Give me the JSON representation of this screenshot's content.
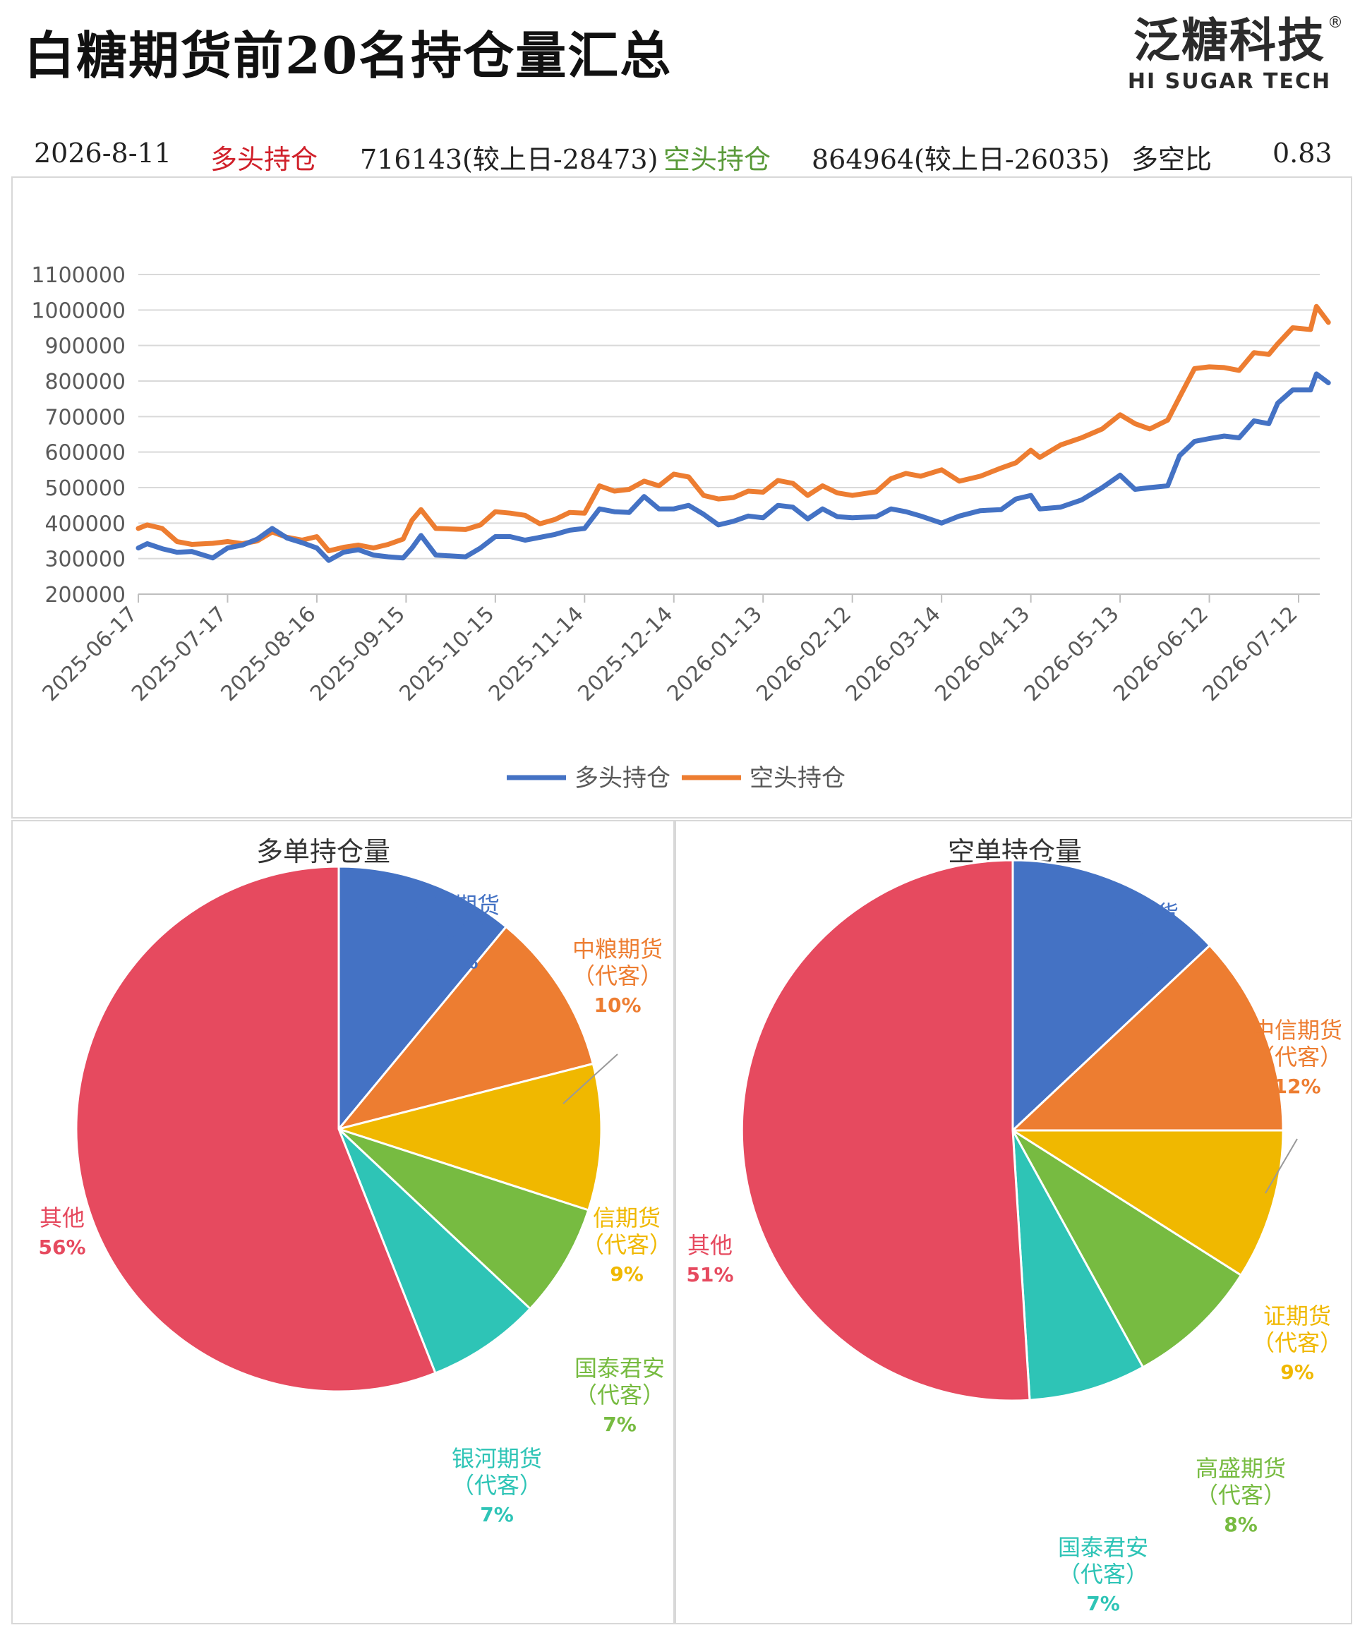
{
  "header": {
    "title": "白糖期货前20名持仓量汇总",
    "logo_cn": "泛糖科技",
    "logo_en": "HI SUGAR TECH",
    "logo_reg": "®"
  },
  "summary": {
    "date": "2026-8-11",
    "long_label": "多头持仓",
    "long_value": "716143(较上日-28473)",
    "short_label": "空头持仓",
    "short_value": "864964(较上日-26035)",
    "ratio_label": "多空比",
    "ratio_value": "0.83"
  },
  "colors": {
    "long": "#4472c4",
    "short": "#ed7d31",
    "pie": [
      "#4472c4",
      "#ed7d31",
      "#f0b800",
      "#77bb41",
      "#2ec4b6",
      "#e64a5f"
    ]
  },
  "chart_data": [
    {
      "type": "line",
      "title": "",
      "xlabel": "",
      "ylabel": "",
      "ylim": [
        200000,
        1100000
      ],
      "yticks": [
        "1100000",
        "1000000",
        "900000",
        "800000",
        "700000",
        "600000",
        "500000",
        "400000",
        "300000",
        "200000"
      ],
      "xticks": [
        "2025-06-17",
        "2025-07-17",
        "2025-08-16",
        "2025-09-15",
        "2025-10-15",
        "2025-11-14",
        "2025-12-14",
        "2026-01-13",
        "2026-02-12",
        "2026-03-14",
        "2026-04-13",
        "2026-05-13",
        "2026-06-12",
        "2026-07-12"
      ],
      "legend_position": "bottom",
      "series": [
        {
          "name": "多头持仓",
          "color": "#4472c4",
          "points": [
            [
              "2025-06-17",
              330000
            ],
            [
              "2025-06-20",
              342000
            ],
            [
              "2025-06-25",
              328000
            ],
            [
              "2025-06-30",
              318000
            ],
            [
              "2025-07-05",
              320000
            ],
            [
              "2025-07-12",
              302000
            ],
            [
              "2025-07-17",
              330000
            ],
            [
              "2025-07-22",
              338000
            ],
            [
              "2025-07-27",
              355000
            ],
            [
              "2025-08-01",
              385000
            ],
            [
              "2025-08-06",
              358000
            ],
            [
              "2025-08-11",
              345000
            ],
            [
              "2025-08-16",
              330000
            ],
            [
              "2025-08-20",
              295000
            ],
            [
              "2025-08-25",
              318000
            ],
            [
              "2025-08-30",
              325000
            ],
            [
              "2025-09-04",
              310000
            ],
            [
              "2025-09-09",
              305000
            ],
            [
              "2025-09-14",
              302000
            ],
            [
              "2025-09-17",
              330000
            ],
            [
              "2025-09-20",
              365000
            ],
            [
              "2025-09-25",
              310000
            ],
            [
              "2025-10-05",
              305000
            ],
            [
              "2025-10-10",
              330000
            ],
            [
              "2025-10-15",
              362000
            ],
            [
              "2025-10-20",
              362000
            ],
            [
              "2025-10-25",
              352000
            ],
            [
              "2025-10-30",
              360000
            ],
            [
              "2025-11-04",
              368000
            ],
            [
              "2025-11-09",
              380000
            ],
            [
              "2025-11-14",
              385000
            ],
            [
              "2025-11-19",
              440000
            ],
            [
              "2025-11-24",
              432000
            ],
            [
              "2025-11-29",
              430000
            ],
            [
              "2025-12-04",
              475000
            ],
            [
              "2025-12-09",
              440000
            ],
            [
              "2025-12-14",
              440000
            ],
            [
              "2025-12-19",
              450000
            ],
            [
              "2025-12-24",
              425000
            ],
            [
              "2025-12-29",
              395000
            ],
            [
              "2026-01-03",
              405000
            ],
            [
              "2026-01-08",
              420000
            ],
            [
              "2026-01-13",
              415000
            ],
            [
              "2026-01-18",
              450000
            ],
            [
              "2026-01-23",
              445000
            ],
            [
              "2026-01-28",
              412000
            ],
            [
              "2026-02-02",
              440000
            ],
            [
              "2026-02-07",
              418000
            ],
            [
              "2026-02-12",
              415000
            ],
            [
              "2026-02-20",
              418000
            ],
            [
              "2026-02-25",
              440000
            ],
            [
              "2026-03-02",
              432000
            ],
            [
              "2026-03-07",
              420000
            ],
            [
              "2026-03-14",
              400000
            ],
            [
              "2026-03-20",
              420000
            ],
            [
              "2026-03-27",
              435000
            ],
            [
              "2026-04-03",
              438000
            ],
            [
              "2026-04-08",
              468000
            ],
            [
              "2026-04-13",
              478000
            ],
            [
              "2026-04-16",
              440000
            ],
            [
              "2026-04-23",
              445000
            ],
            [
              "2026-04-30",
              465000
            ],
            [
              "2026-05-07",
              500000
            ],
            [
              "2026-05-13",
              535000
            ],
            [
              "2026-05-18",
              495000
            ],
            [
              "2026-05-23",
              500000
            ],
            [
              "2026-05-29",
              505000
            ],
            [
              "2026-06-02",
              590000
            ],
            [
              "2026-06-07",
              630000
            ],
            [
              "2026-06-12",
              638000
            ],
            [
              "2026-06-17",
              645000
            ],
            [
              "2026-06-22",
              640000
            ],
            [
              "2026-06-27",
              688000
            ],
            [
              "2026-07-02",
              680000
            ],
            [
              "2026-07-05",
              738000
            ],
            [
              "2026-07-10",
              775000
            ],
            [
              "2026-07-16",
              775000
            ],
            [
              "2026-07-18",
              820000
            ],
            [
              "2026-07-22",
              795000
            ]
          ]
        },
        {
          "name": "空头持仓",
          "color": "#ed7d31",
          "points": [
            [
              "2025-06-17",
              385000
            ],
            [
              "2025-06-20",
              395000
            ],
            [
              "2025-06-25",
              385000
            ],
            [
              "2025-06-30",
              348000
            ],
            [
              "2025-07-05",
              340000
            ],
            [
              "2025-07-12",
              343000
            ],
            [
              "2025-07-17",
              348000
            ],
            [
              "2025-07-22",
              342000
            ],
            [
              "2025-07-27",
              350000
            ],
            [
              "2025-08-01",
              375000
            ],
            [
              "2025-08-06",
              360000
            ],
            [
              "2025-08-11",
              352000
            ],
            [
              "2025-08-16",
              362000
            ],
            [
              "2025-08-20",
              322000
            ],
            [
              "2025-08-25",
              332000
            ],
            [
              "2025-08-30",
              338000
            ],
            [
              "2025-09-04",
              330000
            ],
            [
              "2025-09-09",
              340000
            ],
            [
              "2025-09-14",
              355000
            ],
            [
              "2025-09-17",
              408000
            ],
            [
              "2025-09-20",
              438000
            ],
            [
              "2025-09-25",
              385000
            ],
            [
              "2025-10-05",
              382000
            ],
            [
              "2025-10-10",
              395000
            ],
            [
              "2025-10-15",
              432000
            ],
            [
              "2025-10-20",
              428000
            ],
            [
              "2025-10-25",
              422000
            ],
            [
              "2025-10-30",
              398000
            ],
            [
              "2025-11-04",
              410000
            ],
            [
              "2025-11-09",
              430000
            ],
            [
              "2025-11-14",
              428000
            ],
            [
              "2025-11-19",
              505000
            ],
            [
              "2025-11-24",
              490000
            ],
            [
              "2025-11-29",
              495000
            ],
            [
              "2025-12-04",
              518000
            ],
            [
              "2025-12-09",
              505000
            ],
            [
              "2025-12-14",
              538000
            ],
            [
              "2025-12-19",
              530000
            ],
            [
              "2025-12-24",
              478000
            ],
            [
              "2025-12-29",
              468000
            ],
            [
              "2026-01-03",
              472000
            ],
            [
              "2026-01-08",
              490000
            ],
            [
              "2026-01-13",
              487000
            ],
            [
              "2026-01-18",
              520000
            ],
            [
              "2026-01-23",
              512000
            ],
            [
              "2026-01-28",
              478000
            ],
            [
              "2026-02-02",
              505000
            ],
            [
              "2026-02-07",
              485000
            ],
            [
              "2026-02-12",
              478000
            ],
            [
              "2026-02-20",
              488000
            ],
            [
              "2026-02-25",
              525000
            ],
            [
              "2026-03-02",
              540000
            ],
            [
              "2026-03-07",
              532000
            ],
            [
              "2026-03-14",
              550000
            ],
            [
              "2026-03-20",
              518000
            ],
            [
              "2026-03-27",
              532000
            ],
            [
              "2026-04-03",
              555000
            ],
            [
              "2026-04-08",
              570000
            ],
            [
              "2026-04-13",
              605000
            ],
            [
              "2026-04-16",
              585000
            ],
            [
              "2026-04-23",
              620000
            ],
            [
              "2026-04-30",
              640000
            ],
            [
              "2026-05-07",
              665000
            ],
            [
              "2026-05-13",
              705000
            ],
            [
              "2026-05-18",
              680000
            ],
            [
              "2026-05-23",
              665000
            ],
            [
              "2026-05-29",
              690000
            ],
            [
              "2026-06-02",
              755000
            ],
            [
              "2026-06-07",
              835000
            ],
            [
              "2026-06-12",
              840000
            ],
            [
              "2026-06-17",
              838000
            ],
            [
              "2026-06-22",
              830000
            ],
            [
              "2026-06-27",
              880000
            ],
            [
              "2026-07-02",
              875000
            ],
            [
              "2026-07-05",
              905000
            ],
            [
              "2026-07-10",
              950000
            ],
            [
              "2026-07-16",
              945000
            ],
            [
              "2026-07-18",
              1010000
            ],
            [
              "2026-07-22",
              965000
            ]
          ]
        }
      ]
    },
    {
      "type": "pie",
      "title": "多单持仓量",
      "slices": [
        {
          "label": "东证期货\n（代客）",
          "value": 11,
          "pct": "11%",
          "color": "#4472c4"
        },
        {
          "label": "中粮期货\n（代客）",
          "value": 10,
          "pct": "10%",
          "color": "#ed7d31"
        },
        {
          "label": "信期货\n（代客）",
          "value": 9,
          "pct": "9%",
          "color": "#f0b800"
        },
        {
          "label": "国泰君安\n（代客）",
          "value": 7,
          "pct": "7%",
          "color": "#77bb41"
        },
        {
          "label": "银河期货\n（代客）",
          "value": 7,
          "pct": "7%",
          "color": "#2ec4b6"
        },
        {
          "label": "其他",
          "value": 56,
          "pct": "56%",
          "color": "#e64a5f"
        }
      ]
    },
    {
      "type": "pie",
      "title": "空单持仓量",
      "slices": [
        {
          "label": "中粮期货\n（代客）",
          "value": 13,
          "pct": "13%",
          "color": "#4472c4"
        },
        {
          "label": "中信期货\n（代客）",
          "value": 12,
          "pct": "12%",
          "color": "#ed7d31"
        },
        {
          "label": "证期货\n（代客）",
          "value": 9,
          "pct": "9%",
          "color": "#f0b800"
        },
        {
          "label": "高盛期货\n（代客）",
          "value": 8,
          "pct": "8%",
          "color": "#77bb41"
        },
        {
          "label": "国泰君安\n（代客）",
          "value": 7,
          "pct": "7%",
          "color": "#2ec4b6"
        },
        {
          "label": "其他",
          "value": 51,
          "pct": "51%",
          "color": "#e64a5f"
        }
      ]
    }
  ]
}
